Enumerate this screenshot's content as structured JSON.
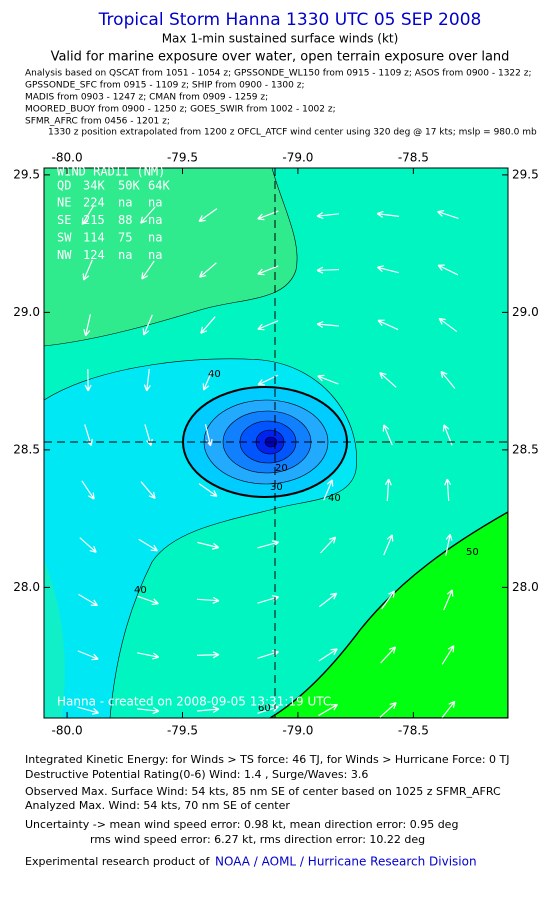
{
  "title": "Tropical Storm Hanna 1330 UTC 05 SEP 2008",
  "subtitle": [
    "Max 1-min sustained surface winds (kt)",
    "Valid for marine exposure over water, open terrain exposure over land"
  ],
  "analysis_lines": [
    "Analysis based on  QSCAT from 1051 - 1054 z;  GPSSONDE_WL150 from 0915 - 1109 z;  ASOS from 0900 - 1322 z;",
    "GPSSONDE_SFC from 0915 - 1109 z;  SHIP from 0900 - 1300 z;",
    "MADIS from 0903 - 1247 z;  CMAN from 0909 - 1259 z;",
    "MOORED_BUOY from 0900 - 1250 z;  GOES_SWIR from 1002 - 1002 z;",
    "SFMR_AFRC from 0456 - 1201 z;",
    "1330 z position extrapolated from 1200 z OFCL_ATCF wind center using 320 deg @ 17 kts; mslp = 980.0 mb"
  ],
  "map": {
    "xlim": [
      -80.1,
      -78.09
    ],
    "ylim": [
      27.525,
      29.525
    ],
    "xticks": [
      {
        "value": -80,
        "label": "-80.0"
      },
      {
        "value": -79.5,
        "label": "-79.5"
      },
      {
        "value": -79,
        "label": "-79.0"
      },
      {
        "value": -78.5,
        "label": "-78.5"
      }
    ],
    "yticks": [
      {
        "value": 29.5,
        "label": "29.5"
      },
      {
        "value": 29,
        "label": "29.0"
      },
      {
        "value": 28.5,
        "label": "28.5"
      },
      {
        "value": 28,
        "label": "28.0"
      }
    ],
    "contour_labels": [
      40,
      40,
      40,
      50,
      60,
      30,
      20
    ],
    "wind_radii": {
      "title": "WIND RADII (NM)",
      "header": [
        "QD",
        "34K",
        "50K",
        "64K"
      ],
      "rows": [
        [
          "NE",
          "224",
          "na",
          "na"
        ],
        [
          "SE",
          "215",
          "88",
          "na"
        ],
        [
          "SW",
          "114",
          "75",
          "na"
        ],
        [
          "NW",
          "124",
          "na",
          "na"
        ]
      ]
    },
    "credit": "Hanna - created on 2008-09-05 13:31:19 UTC"
  },
  "footer": [
    "Integrated Kinetic Energy:  for Winds > TS force: 46 TJ,  for Winds > Hurricane Force: 0 TJ",
    "Destructive Potential Rating(0-6)   Wind: 1.4 , Surge/Waves: 3.6",
    "Observed Max. Surface Wind: 54 kts, 85 nm SE of center based on 1025 z SFMR_AFRC",
    "Analyzed Max. Wind: 54 kts, 70 nm SE of center",
    "Uncertainty -> mean wind speed error: 0.98 kt,   mean direction error: 0.95 deg",
    "rms wind speed error: 6.27 kt,   rms direction error: 10.22 deg"
  ],
  "product_prefix": "Experimental research product of",
  "product_link": "NOAA / AOML / Hurricane Research Division"
}
